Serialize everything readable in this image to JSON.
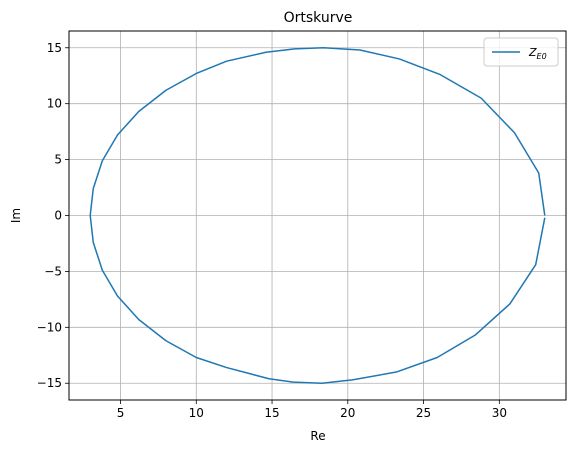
{
  "chart_data": {
    "type": "line",
    "title": "Ortskurve",
    "xlabel": "Re",
    "ylabel": "Im",
    "xlim": [
      1.6,
      34.4
    ],
    "ylim": [
      -16.5,
      16.5
    ],
    "xticks": [
      5,
      10,
      15,
      20,
      25,
      30
    ],
    "yticks": [
      -15,
      -10,
      -5,
      0,
      5,
      10,
      15
    ],
    "grid": true,
    "legend": "top-right",
    "colors": {
      "series": "#1f77b4",
      "grid": "#b0b0b0"
    },
    "series": [
      {
        "name_main": "Z",
        "name_sub": "E0",
        "x": [
          33.0,
          32.6,
          31.0,
          28.8,
          26.1,
          23.4,
          20.8,
          18.4,
          16.5,
          14.6,
          12.0,
          10.0,
          8.0,
          6.2,
          4.8,
          3.8,
          3.2,
          3.0,
          3.2,
          3.8,
          4.8,
          6.2,
          8.0,
          10.0,
          12.0,
          13.4,
          14.8,
          16.4,
          18.3,
          20.3,
          23.2,
          25.9,
          28.4,
          30.7,
          32.4,
          33.0
        ],
        "y": [
          0.0,
          3.8,
          7.4,
          10.5,
          12.6,
          14.0,
          14.8,
          15.0,
          14.9,
          14.6,
          13.8,
          12.7,
          11.2,
          9.3,
          7.2,
          4.9,
          2.4,
          0.0,
          -2.4,
          -4.9,
          -7.2,
          -9.3,
          -11.2,
          -12.7,
          -13.6,
          -14.1,
          -14.6,
          -14.9,
          -15.0,
          -14.7,
          -14.0,
          -12.7,
          -10.7,
          -7.9,
          -4.4,
          -0.2
        ]
      }
    ]
  }
}
